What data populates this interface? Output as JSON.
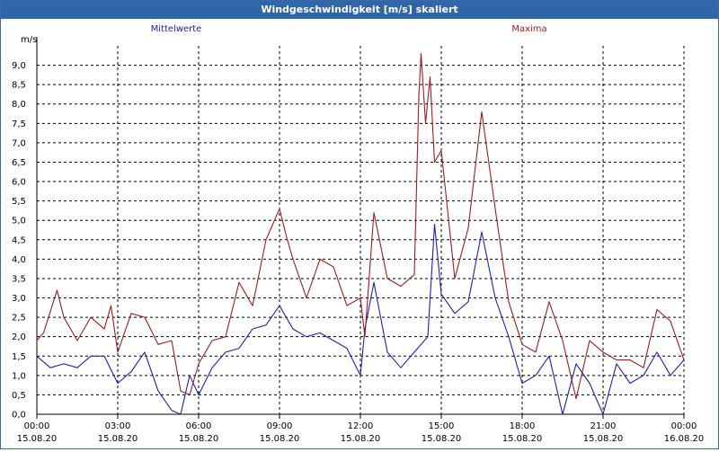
{
  "window": {
    "title": "Windgeschwindigkeit [m/s] skaliert"
  },
  "chart_data": {
    "type": "line",
    "ylabel": "m/s",
    "ylim": [
      0.0,
      9.0
    ],
    "yticks": [
      "0,0",
      "0,5",
      "1,0",
      "1,5",
      "2,0",
      "2,5",
      "3,0",
      "3,5",
      "4,0",
      "4,5",
      "5,0",
      "5,5",
      "6,0",
      "6,5",
      "7,0",
      "7,5",
      "8,0",
      "8,5",
      "9,0"
    ],
    "xlim": [
      "2020-08-15 00:00",
      "2020-08-16 00:00"
    ],
    "xticks": [
      {
        "time": "00:00",
        "date": "15.08.20"
      },
      {
        "time": "03:00",
        "date": "15.08.20"
      },
      {
        "time": "06:00",
        "date": "15.08.20"
      },
      {
        "time": "09:00",
        "date": "15.08.20"
      },
      {
        "time": "12:00",
        "date": "15.08.20"
      },
      {
        "time": "15:00",
        "date": "15.08.20"
      },
      {
        "time": "18:00",
        "date": "15.08.20"
      },
      {
        "time": "21:00",
        "date": "15.08.20"
      },
      {
        "time": "00:00",
        "date": "16.08.20"
      }
    ],
    "grid": true,
    "series": [
      {
        "name": "Mittelwerte",
        "color": "#1f1fb4",
        "x": [
          "00:00",
          "00:30",
          "01:00",
          "01:30",
          "02:00",
          "02:30",
          "03:00",
          "03:30",
          "04:00",
          "04:30",
          "05:00",
          "05:20",
          "05:40",
          "06:00",
          "06:30",
          "07:00",
          "07:30",
          "08:00",
          "08:30",
          "09:00",
          "09:30",
          "10:00",
          "10:30",
          "11:00",
          "11:30",
          "12:00",
          "12:10",
          "12:30",
          "13:00",
          "13:30",
          "14:00",
          "14:30",
          "14:45",
          "15:00",
          "15:30",
          "16:00",
          "16:30",
          "17:00",
          "17:30",
          "18:00",
          "18:30",
          "19:00",
          "19:30",
          "20:00",
          "20:30",
          "21:00",
          "21:30",
          "22:00",
          "22:30",
          "23:00",
          "23:30",
          "24:00"
        ],
        "values": [
          1.5,
          1.2,
          1.3,
          1.2,
          1.5,
          1.5,
          0.8,
          1.1,
          1.6,
          0.6,
          0.1,
          0.0,
          1.0,
          0.5,
          1.2,
          1.6,
          1.7,
          2.2,
          2.3,
          2.8,
          2.2,
          2.0,
          2.1,
          1.9,
          1.7,
          1.0,
          2.2,
          3.4,
          1.6,
          1.2,
          1.6,
          2.0,
          4.9,
          3.1,
          2.6,
          2.9,
          4.7,
          3.0,
          2.0,
          0.8,
          1.0,
          1.5,
          0.0,
          1.3,
          0.8,
          0.0,
          1.3,
          0.8,
          1.0,
          1.6,
          1.0,
          1.4
        ]
      },
      {
        "name": "Maxima",
        "color": "#a01c1c",
        "x": [
          "00:00",
          "00:15",
          "00:45",
          "01:00",
          "01:30",
          "02:00",
          "02:30",
          "02:45",
          "03:00",
          "03:30",
          "04:00",
          "04:30",
          "05:00",
          "05:20",
          "05:40",
          "06:00",
          "06:30",
          "07:00",
          "07:30",
          "08:00",
          "08:30",
          "09:00",
          "09:15",
          "09:30",
          "10:00",
          "10:30",
          "11:00",
          "11:30",
          "12:00",
          "12:10",
          "12:30",
          "13:00",
          "13:30",
          "14:00",
          "14:10",
          "14:15",
          "14:25",
          "14:35",
          "14:45",
          "15:00",
          "15:30",
          "16:00",
          "16:30",
          "17:00",
          "17:30",
          "18:00",
          "18:30",
          "19:00",
          "19:30",
          "20:00",
          "20:30",
          "21:00",
          "21:30",
          "22:00",
          "22:30",
          "23:00",
          "23:30",
          "24:00"
        ],
        "values": [
          1.9,
          2.1,
          3.2,
          2.5,
          1.9,
          2.5,
          2.2,
          2.8,
          1.6,
          2.6,
          2.5,
          1.8,
          1.9,
          0.6,
          0.5,
          1.3,
          1.9,
          2.0,
          3.4,
          2.8,
          4.5,
          5.3,
          4.6,
          4.0,
          3.0,
          4.0,
          3.8,
          2.8,
          3.0,
          2.0,
          5.2,
          3.5,
          3.3,
          3.6,
          8.2,
          9.3,
          7.5,
          8.7,
          6.5,
          6.8,
          3.5,
          4.8,
          7.8,
          5.3,
          2.9,
          1.8,
          1.6,
          2.9,
          1.9,
          0.4,
          1.9,
          1.6,
          1.4,
          1.4,
          1.2,
          2.7,
          2.4,
          1.4
        ]
      }
    ]
  }
}
